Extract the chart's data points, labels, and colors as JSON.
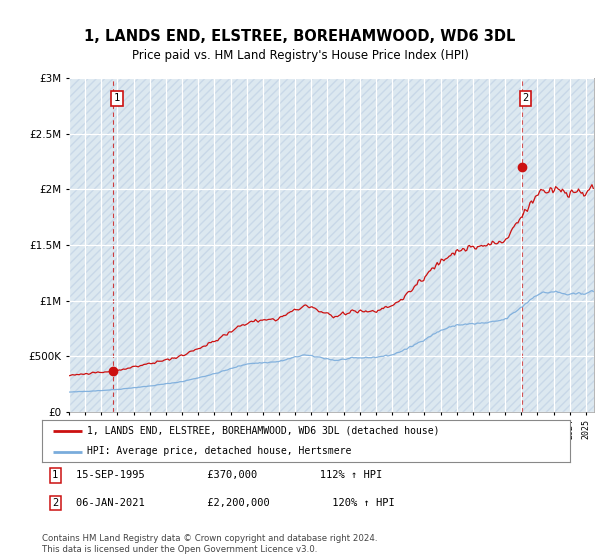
{
  "title": "1, LANDS END, ELSTREE, BOREHAMWOOD, WD6 3DL",
  "subtitle": "Price paid vs. HM Land Registry's House Price Index (HPI)",
  "hpi_line_color": "#7aacdc",
  "price_line_color": "#cc1111",
  "hatch_color": "#c8d8e8",
  "bg_color": "#dce8f0",
  "grid_color": "#ffffff",
  "sale1_price": 370000,
  "sale1_x": 1995.71,
  "sale2_price": 2200000,
  "sale2_x": 2021.02,
  "legend_house_label": "1, LANDS END, ELSTREE, BOREHAMWOOD, WD6 3DL (detached house)",
  "legend_hpi_label": "HPI: Average price, detached house, Hertsmere",
  "footer1": "Contains HM Land Registry data © Crown copyright and database right 2024.",
  "footer2": "This data is licensed under the Open Government Licence v3.0.",
  "note1_text": "15-SEP-1995          £370,000          112% ↑ HPI",
  "note2_text": "06-JAN-2021          £2,200,000          120% ↑ HPI",
  "ylim_max": 3000000,
  "xlim_min": 1993.0,
  "xlim_max": 2025.5
}
